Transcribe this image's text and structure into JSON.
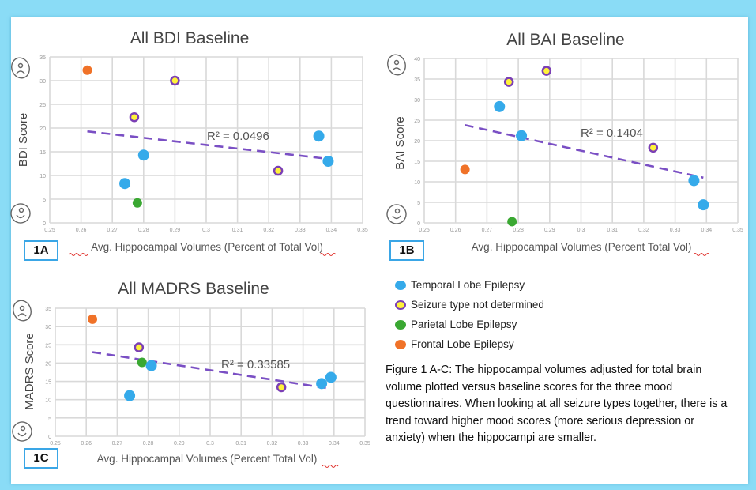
{
  "legend": [
    {
      "key": "tle",
      "label": "Temporal Lobe Epilepsy",
      "fill": "#35aaea",
      "stroke": "#35aaea"
    },
    {
      "key": "und",
      "label": "Seizure type not determined",
      "fill": "#fff23a",
      "stroke": "#7b3fb5"
    },
    {
      "key": "ple",
      "label": "Parietal Lobe Epilepsy",
      "fill": "#3aa832",
      "stroke": "#3aa832"
    },
    {
      "key": "fle",
      "label": "Frontal Lobe Epilepsy",
      "fill": "#f07228",
      "stroke": "#f07228"
    }
  ],
  "caption": "Figure 1 A-C: The hippocampal volumes adjusted for total brain volume plotted versus baseline scores for the three mood questionnaires. When looking at all seizure types together, there is a trend toward higher mood scores (more serious depression or anxiety) when the hippocampi are smaller.",
  "chart_data": [
    {
      "id": "1A",
      "type": "scatter",
      "title": "All BDI Baseline",
      "xlabel": "Avg. Hippocampal Volumes (Percent of Total Vol)",
      "ylabel": "BDI Score",
      "xlim": [
        0.25,
        0.35
      ],
      "ylim": [
        0,
        35
      ],
      "xticks": [
        "0.25",
        "0.26",
        "0.27",
        "0.28",
        "0.29",
        "0.3",
        "0.31",
        "0.32",
        "0.33",
        "0.34",
        "0.35"
      ],
      "yticks": [
        "0",
        "5",
        "10",
        "15",
        "20",
        "25",
        "30",
        "35"
      ],
      "grid": true,
      "r2_label": "R² = 0.0496",
      "trendline": {
        "x": [
          0.262,
          0.339
        ],
        "y": [
          19.3,
          13.5
        ]
      },
      "points": [
        {
          "x": 0.262,
          "y": 32.2,
          "group": "fle"
        },
        {
          "x": 0.277,
          "y": 22.3,
          "group": "und"
        },
        {
          "x": 0.29,
          "y": 30.0,
          "group": "und"
        },
        {
          "x": 0.28,
          "y": 14.3,
          "group": "tle"
        },
        {
          "x": 0.274,
          "y": 8.3,
          "group": "tle"
        },
        {
          "x": 0.278,
          "y": 4.2,
          "group": "ple"
        },
        {
          "x": 0.323,
          "y": 11.0,
          "group": "und"
        },
        {
          "x": 0.336,
          "y": 18.3,
          "group": "tle"
        },
        {
          "x": 0.339,
          "y": 13.0,
          "group": "tle"
        }
      ]
    },
    {
      "id": "1B",
      "type": "scatter",
      "title": "All BAI Baseline",
      "xlabel": "Avg. Hippocampal Volumes (Percent Total Vol)",
      "ylabel": "BAI Score",
      "xlim": [
        0.25,
        0.35
      ],
      "ylim": [
        0,
        40
      ],
      "xticks": [
        "0.25",
        "0.26",
        "0.27",
        "0.28",
        "0.29",
        "0.3",
        "0.31",
        "0.32",
        "0.33",
        "0.34",
        "0.35"
      ],
      "yticks": [
        "0",
        "5",
        "10",
        "15",
        "20",
        "25",
        "30",
        "35",
        "40"
      ],
      "grid": true,
      "r2_label": "R² = 0.1404",
      "trendline": {
        "x": [
          0.263,
          0.339
        ],
        "y": [
          23.8,
          11.0
        ]
      },
      "points": [
        {
          "x": 0.263,
          "y": 13.0,
          "group": "fle"
        },
        {
          "x": 0.274,
          "y": 28.3,
          "group": "tle"
        },
        {
          "x": 0.277,
          "y": 34.3,
          "group": "und"
        },
        {
          "x": 0.289,
          "y": 37.0,
          "group": "und"
        },
        {
          "x": 0.281,
          "y": 21.2,
          "group": "tle"
        },
        {
          "x": 0.278,
          "y": 0.3,
          "group": "ple"
        },
        {
          "x": 0.323,
          "y": 18.3,
          "group": "und"
        },
        {
          "x": 0.336,
          "y": 10.3,
          "group": "tle"
        },
        {
          "x": 0.339,
          "y": 4.4,
          "group": "tle"
        }
      ]
    },
    {
      "id": "1C",
      "type": "scatter",
      "title": "All MADRS Baseline",
      "xlabel": "Avg. Hippocampal Volumes (Percent Total Vol)",
      "ylabel": "MADRS Score",
      "xlim": [
        0.25,
        0.35
      ],
      "ylim": [
        0,
        35
      ],
      "xticks": [
        "0.25",
        "0.26",
        "0.27",
        "0.28",
        "0.29",
        "0.3",
        "0.31",
        "0.32",
        "0.33",
        "0.34",
        "0.35"
      ],
      "yticks": [
        "0",
        "5",
        "10",
        "15",
        "20",
        "25",
        "30",
        "35"
      ],
      "grid": true,
      "r2_label": "R² = 0.33585",
      "trendline": {
        "x": [
          0.262,
          0.339
        ],
        "y": [
          23.0,
          13.0
        ]
      },
      "points": [
        {
          "x": 0.262,
          "y": 32.0,
          "group": "fle"
        },
        {
          "x": 0.277,
          "y": 24.3,
          "group": "und"
        },
        {
          "x": 0.278,
          "y": 20.2,
          "group": "ple"
        },
        {
          "x": 0.281,
          "y": 19.3,
          "group": "tle"
        },
        {
          "x": 0.274,
          "y": 11.1,
          "group": "tle"
        },
        {
          "x": 0.323,
          "y": 13.4,
          "group": "und"
        },
        {
          "x": 0.336,
          "y": 14.4,
          "group": "tle"
        },
        {
          "x": 0.339,
          "y": 16.1,
          "group": "tle"
        }
      ]
    }
  ]
}
